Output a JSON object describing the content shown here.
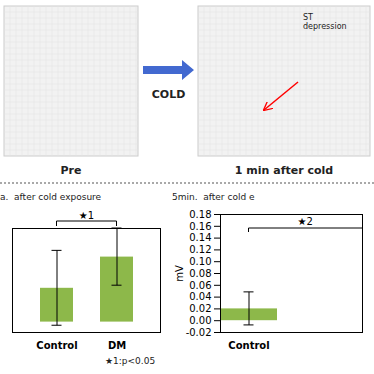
{
  "chart_data": [
    {
      "type": "illustration",
      "annotations": [
        "Pre",
        "COLD",
        "ST\ndepression",
        "1 min after cold"
      ]
    },
    {
      "type": "bar",
      "title": "a.  after cold exposure",
      "categories": [
        "Control",
        "DM"
      ],
      "values": [
        0.065,
        0.125
      ],
      "errors": [
        0.072,
        0.055
      ],
      "color": "#8db84a",
      "ylim": [
        -0.02,
        0.18
      ],
      "tick_labels": "x",
      "annotations": [
        "★1",
        "★1:p<0.05"
      ]
    },
    {
      "type": "bar",
      "title": "5min.  after cold e",
      "categories": [
        "Control"
      ],
      "values": [
        0.02
      ],
      "errors": [
        0.028
      ],
      "color": "#8db84a",
      "ylabel": "mV",
      "ylim": [
        -0.02,
        0.18
      ],
      "yticks": [
        -0.02,
        {
          "value": 0,
          "label": "0.00"
        },
        0.02,
        0.04,
        0.06,
        0.08,
        {
          "value": 0.1,
          "label": "0.10"
        },
        0.12,
        0.14,
        0.16,
        0.18
      ],
      "annotations": [
        "★2"
      ]
    }
  ]
}
